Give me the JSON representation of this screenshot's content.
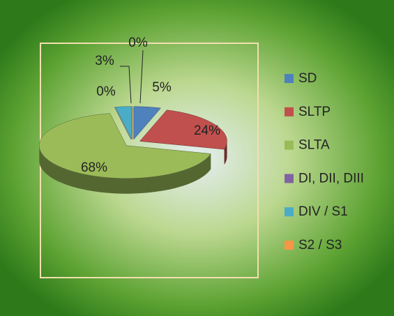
{
  "chart_data": {
    "type": "pie",
    "categories": [
      "SD",
      "SLTP",
      "SLTA",
      "DI, DII, DIII",
      "DIV / S1",
      "S2 / S3"
    ],
    "values": [
      5,
      24,
      68,
      0,
      3,
      0
    ],
    "value_labels": [
      "5%",
      "24%",
      "68%",
      "0%",
      "3%",
      "0%"
    ],
    "colors": [
      "#4f81bd",
      "#c0504d",
      "#9bbb59",
      "#8064a2",
      "#4bacc6",
      "#f79646"
    ],
    "legend": "right"
  }
}
